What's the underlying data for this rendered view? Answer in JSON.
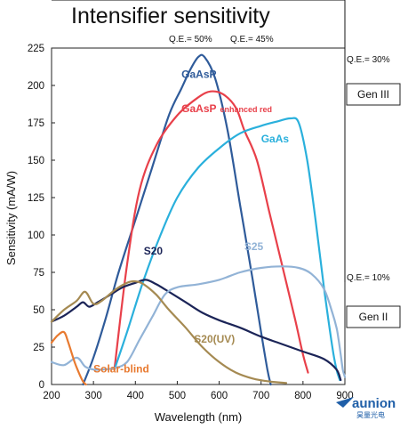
{
  "chart_data": {
    "type": "line",
    "title": "Intensifier sensitivity",
    "xlabel": "Wavelength (nm)",
    "ylabel": "Sensitivity (mA/W)",
    "xlim": [
      200,
      900
    ],
    "ylim": [
      0,
      225
    ],
    "xticks": [
      "200",
      "300",
      "400",
      "500",
      "600",
      "700",
      "800",
      "900"
    ],
    "yticks": [
      "0",
      "25",
      "50",
      "75",
      "100",
      "125",
      "150",
      "175",
      "200",
      "225"
    ],
    "grid": false,
    "series": [
      {
        "name": "GaAsP",
        "color": "#2f5b9a",
        "label_pos": [
          510,
          205
        ],
        "points": [
          [
            275,
            0
          ],
          [
            300,
            18
          ],
          [
            330,
            45
          ],
          [
            360,
            75
          ],
          [
            400,
            110
          ],
          [
            440,
            145
          ],
          [
            480,
            180
          ],
          [
            510,
            198
          ],
          [
            530,
            210
          ],
          [
            550,
            219
          ],
          [
            565,
            219
          ],
          [
            590,
            205
          ],
          [
            620,
            170
          ],
          [
            650,
            120
          ],
          [
            680,
            70
          ],
          [
            700,
            35
          ],
          [
            715,
            10
          ],
          [
            723,
            0
          ]
        ]
      },
      {
        "name": "GaAsP",
        "suffix": "enhanced red",
        "color": "#e8404a",
        "label_pos": [
          510,
          182
        ],
        "points": [
          [
            350,
            10
          ],
          [
            380,
            80
          ],
          [
            410,
            130
          ],
          [
            450,
            160
          ],
          [
            500,
            180
          ],
          [
            550,
            192
          ],
          [
            580,
            196
          ],
          [
            610,
            194
          ],
          [
            640,
            185
          ],
          [
            660,
            170
          ],
          [
            690,
            150
          ],
          [
            720,
            115
          ],
          [
            750,
            80
          ],
          [
            780,
            45
          ],
          [
            800,
            20
          ],
          [
            812,
            8
          ]
        ]
      },
      {
        "name": "GaAs",
        "color": "#2ab0dc",
        "label_pos": [
          700,
          162
        ],
        "points": [
          [
            350,
            10
          ],
          [
            380,
            35
          ],
          [
            420,
            70
          ],
          [
            460,
            100
          ],
          [
            500,
            125
          ],
          [
            550,
            145
          ],
          [
            600,
            158
          ],
          [
            650,
            168
          ],
          [
            700,
            173
          ],
          [
            740,
            176
          ],
          [
            770,
            178
          ],
          [
            790,
            175
          ],
          [
            810,
            150
          ],
          [
            830,
            110
          ],
          [
            850,
            65
          ],
          [
            870,
            25
          ],
          [
            880,
            10
          ],
          [
            888,
            3
          ]
        ]
      },
      {
        "name": "S20",
        "color": "#1b2457",
        "label_pos": [
          420,
          87
        ],
        "points": [
          [
            200,
            42
          ],
          [
            230,
            46
          ],
          [
            260,
            52
          ],
          [
            275,
            55
          ],
          [
            290,
            52
          ],
          [
            310,
            55
          ],
          [
            340,
            60
          ],
          [
            370,
            65
          ],
          [
            400,
            68
          ],
          [
            425,
            70
          ],
          [
            450,
            67
          ],
          [
            480,
            62
          ],
          [
            520,
            55
          ],
          [
            560,
            48
          ],
          [
            600,
            43
          ],
          [
            650,
            38
          ],
          [
            700,
            32
          ],
          [
            750,
            27
          ],
          [
            800,
            22
          ],
          [
            850,
            17
          ],
          [
            880,
            10
          ],
          [
            890,
            3
          ]
        ]
      },
      {
        "name": "S25",
        "color": "#92b3d6",
        "label_pos": [
          660,
          90
        ],
        "points": [
          [
            200,
            15
          ],
          [
            230,
            13
          ],
          [
            260,
            18
          ],
          [
            280,
            12
          ],
          [
            300,
            10
          ],
          [
            320,
            10
          ],
          [
            350,
            11
          ],
          [
            380,
            15
          ],
          [
            410,
            30
          ],
          [
            440,
            45
          ],
          [
            470,
            60
          ],
          [
            500,
            65
          ],
          [
            550,
            67
          ],
          [
            600,
            70
          ],
          [
            650,
            75
          ],
          [
            700,
            78
          ],
          [
            750,
            79
          ],
          [
            790,
            78
          ],
          [
            820,
            74
          ],
          [
            850,
            64
          ],
          [
            870,
            48
          ],
          [
            880,
            38
          ],
          [
            885,
            30
          ],
          [
            890,
            20
          ],
          [
            895,
            10
          ],
          [
            900,
            5
          ]
        ]
      },
      {
        "name": "S20(UV)",
        "color": "#a58a52",
        "label_pos": [
          540,
          28
        ],
        "points": [
          [
            200,
            42
          ],
          [
            230,
            50
          ],
          [
            260,
            56
          ],
          [
            280,
            62
          ],
          [
            300,
            54
          ],
          [
            320,
            56
          ],
          [
            350,
            63
          ],
          [
            380,
            68
          ],
          [
            400,
            69
          ],
          [
            420,
            67
          ],
          [
            450,
            60
          ],
          [
            480,
            50
          ],
          [
            520,
            38
          ],
          [
            560,
            25
          ],
          [
            600,
            15
          ],
          [
            640,
            8
          ],
          [
            680,
            4
          ],
          [
            720,
            2
          ],
          [
            760,
            1
          ]
        ]
      },
      {
        "name": "Solar-blind",
        "color": "#e87a30",
        "label_pos": [
          300,
          8
        ],
        "points": [
          [
            200,
            28
          ],
          [
            215,
            33
          ],
          [
            230,
            35
          ],
          [
            240,
            28
          ],
          [
            255,
            15
          ],
          [
            265,
            8
          ],
          [
            275,
            2
          ],
          [
            282,
            0
          ]
        ]
      }
    ],
    "qe_lines": [
      {
        "label": "Q.E.= 50%",
        "color": "#111111"
      },
      {
        "label": "Q.E.= 45%",
        "color": "#111111"
      },
      {
        "label": "Q.E.= 30%",
        "color": "#111111"
      },
      {
        "label": "Q.E.= 10%",
        "color": "#111111"
      }
    ],
    "regions": [
      {
        "label": "Gen III"
      },
      {
        "label": "Gen II"
      }
    ]
  },
  "logo": {
    "text": "aunion",
    "sub": "昊量光电"
  }
}
